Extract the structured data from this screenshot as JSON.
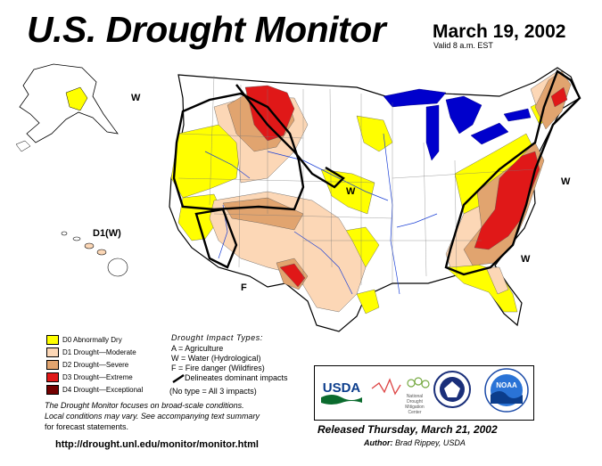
{
  "header": {
    "title": "U.S. Drought Monitor",
    "date": "March 19, 2002",
    "valid": "Valid 8 a.m. EST"
  },
  "legend": {
    "items": [
      {
        "label": "D0 Abnormally Dry",
        "color": "#ffff00"
      },
      {
        "label": "D1 Drought—Moderate",
        "color": "#fcd7b6"
      },
      {
        "label": "D2 Drought—Severe",
        "color": "#e1a46f"
      },
      {
        "label": "D3 Drought—Extreme",
        "color": "#e01818"
      },
      {
        "label": "D4 Drought—Exceptional",
        "color": "#730000"
      }
    ]
  },
  "impacts": {
    "title": "Drought Impact Types:",
    "lines": [
      "A = Agriculture",
      "W = Water (Hydrological)",
      "F = Fire danger (Wildfires)"
    ],
    "delineates": "Delineates dominant impacts",
    "note": "(No type = All 3 impacts)"
  },
  "notes": {
    "line1": "The Drought Monitor focuses on broad-scale conditions.",
    "line2": "Local conditions may vary. See accompanying text summary",
    "line3": "for forecast statements."
  },
  "url": "http://drought.unl.edu/monitor/monitor.html",
  "released": "Released Thursday, March 21, 2002",
  "author": {
    "label": "Author:",
    "name": "Brad Rippey, USDA"
  },
  "map_labels": {
    "w_northwest": "W",
    "w_central": "W",
    "w_northeast": "W",
    "w_southeast": "W",
    "f_southwest": "F",
    "hawaii": "D1(W)"
  },
  "logos": {
    "usda": "USDA",
    "ndmc_line1": "National",
    "ndmc_line2": "Drought",
    "ndmc_line3": "Mitigation",
    "ndmc_line4": "Center",
    "noaa": "NOAA"
  },
  "colors": {
    "d0": "#ffff00",
    "d1": "#fcd7b6",
    "d2": "#e1a46f",
    "d3": "#e01818",
    "d4": "#730000",
    "water": "#0000cc",
    "rivers": "#1a3fd6",
    "land": "#ffffff"
  }
}
